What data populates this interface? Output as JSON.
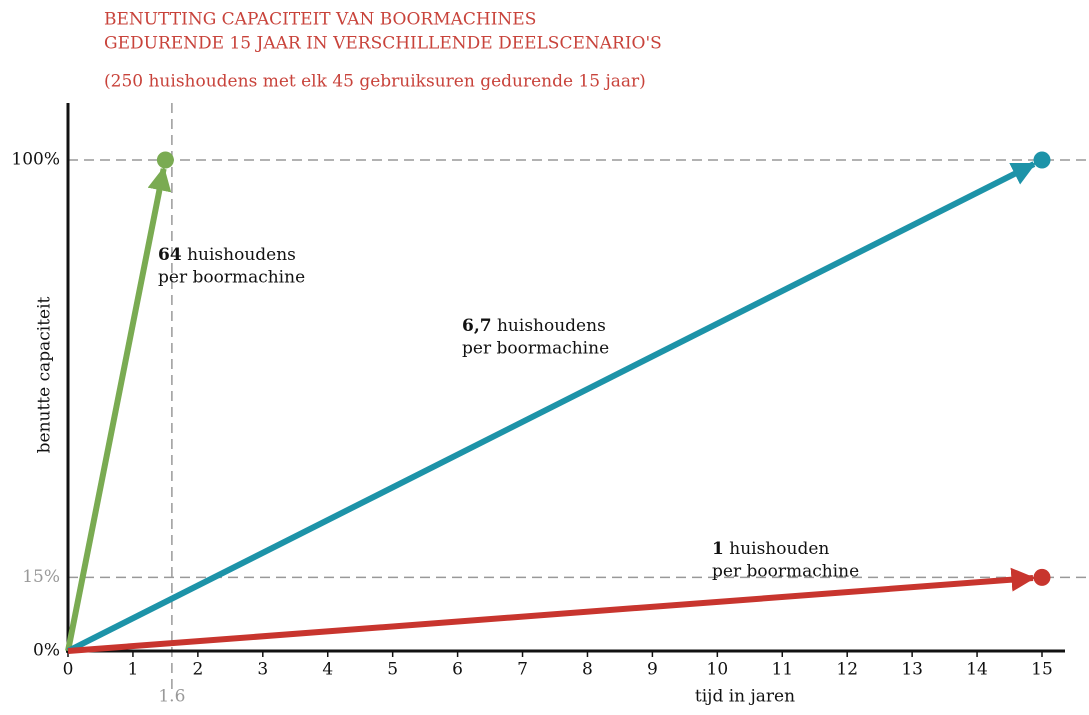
{
  "chart_data": {
    "type": "line",
    "title": [
      "BENUTTING CAPACITEIT VAN BOORMACHINES",
      "GEDURENDE 15 JAAR IN VERSCHILLENDE DEELSCENARIO'S"
    ],
    "subtitle": "(250 huishoudens met elk 45 gebruiksuren gedurende 15 jaar)",
    "x_label": "tijd in jaren",
    "y_label": "benutte capaciteit",
    "xlim": [
      0,
      15
    ],
    "ylim": [
      0,
      100
    ],
    "xticks": [
      0,
      1,
      2,
      3,
      4,
      5,
      6,
      7,
      8,
      9,
      10,
      11,
      12,
      13,
      14,
      15
    ],
    "yticks": [
      {
        "value": 0,
        "label": "0%"
      },
      {
        "value": 15,
        "label": "15%"
      },
      {
        "value": 100,
        "label": "100%"
      }
    ],
    "reference_x": {
      "value": 1.6,
      "label": "1.6"
    },
    "series": [
      {
        "color": "#7aab52",
        "x": [
          0,
          1.5
        ],
        "values": [
          0,
          100
        ],
        "annotation": {
          "bold": "64",
          "text": " huishoudens",
          "line2": "per boormachine"
        }
      },
      {
        "color": "#1d93a8",
        "x": [
          0,
          15
        ],
        "values": [
          0,
          100
        ],
        "annotation": {
          "bold": "6,7",
          "text": " huishoudens",
          "line2": "per boormachine"
        }
      },
      {
        "color": "#c8352e",
        "x": [
          0,
          15
        ],
        "values": [
          0,
          15
        ],
        "annotation": {
          "bold": "1",
          "text": " huishouden",
          "line2": "per boormachine"
        }
      }
    ]
  }
}
